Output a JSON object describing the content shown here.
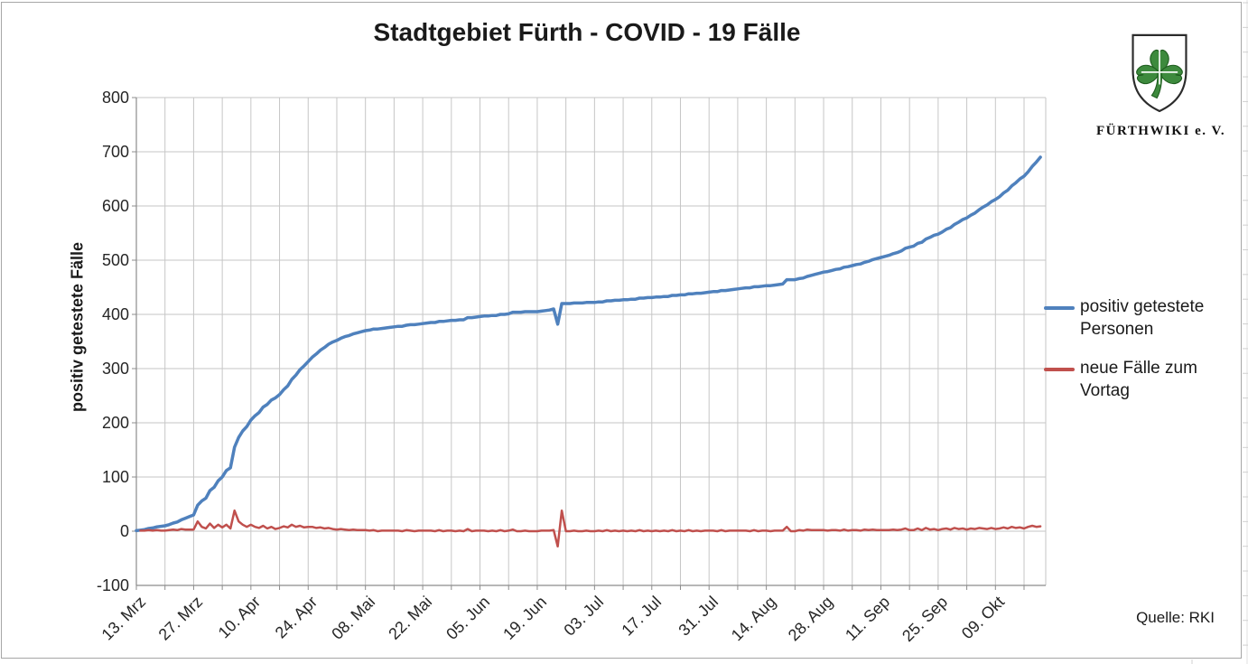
{
  "title": "Stadtgebiet Fürth - COVID - 19 Fälle",
  "logo": {
    "caption": "FÜRTHWIKI e. V.",
    "clover_color": "#3d8a3d",
    "shield_outline": "#2b2b2b"
  },
  "source_note": "Quelle: RKI",
  "legend": [
    {
      "label": "positiv getestete Personen",
      "color": "#4F81BD"
    },
    {
      "label": "neue Fälle zum Vortag",
      "color": "#C0504D"
    }
  ],
  "colors": {
    "gridline": "#c6c6c6",
    "axis": "#8c8c8c",
    "cell_line": "#d0d0d0",
    "text": "#262626"
  },
  "chart_data": {
    "type": "line",
    "title": "Stadtgebiet Fürth - COVID - 19 Fälle",
    "xlabel": "",
    "ylabel": "positiv getestete Fälle",
    "ylim": [
      -100,
      800
    ],
    "y_ticks": [
      800,
      700,
      600,
      500,
      400,
      300,
      200,
      100,
      0,
      -100
    ],
    "grid": true,
    "legend_position": "right",
    "x_tick_labels": [
      "13. Mrz",
      "27. Mrz",
      "10. Apr",
      "24. Apr",
      "08. Mai",
      "22. Mai",
      "05. Jun",
      "19. Jun",
      "03. Jul",
      "17. Jul",
      "31. Jul",
      "14. Aug",
      "28. Aug",
      "11. Sep",
      "25. Sep",
      "09. Okt"
    ],
    "x_tick_interval_days": 14,
    "gridline_interval_days": 7,
    "x_resolution": "daily, starting 13. Mrz",
    "series": [
      {
        "name": "positiv getestete Personen",
        "color": "#4F81BD",
        "width": 3.5,
        "values": [
          1,
          2,
          3,
          5,
          6,
          8,
          9,
          10,
          12,
          15,
          17,
          21,
          24,
          27,
          30,
          48,
          56,
          61,
          75,
          81,
          93,
          100,
          112,
          117,
          155,
          173,
          185,
          193,
          205,
          213,
          219,
          229,
          234,
          242,
          246,
          252,
          261,
          268,
          280,
          288,
          298,
          305,
          313,
          321,
          327,
          334,
          339,
          345,
          349,
          352,
          356,
          359,
          361,
          364,
          366,
          368,
          370,
          371,
          373,
          373,
          374,
          375,
          376,
          377,
          378,
          378,
          380,
          381,
          381,
          382,
          383,
          384,
          385,
          385,
          387,
          387,
          388,
          389,
          389,
          390,
          390,
          394,
          394,
          395,
          396,
          397,
          397,
          398,
          398,
          400,
          400,
          401,
          404,
          404,
          404,
          405,
          405,
          405,
          405,
          406,
          407,
          408,
          410,
          382,
          420,
          420,
          420,
          421,
          421,
          421,
          422,
          422,
          422,
          423,
          423,
          425,
          425,
          426,
          426,
          427,
          427,
          428,
          428,
          430,
          430,
          431,
          431,
          432,
          432,
          433,
          433,
          435,
          435,
          436,
          436,
          438,
          438,
          439,
          439,
          440,
          441,
          442,
          442,
          444,
          444,
          445,
          446,
          447,
          448,
          449,
          449,
          451,
          451,
          452,
          453,
          453,
          454,
          455,
          456,
          464,
          464,
          464,
          466,
          467,
          470,
          472,
          474,
          476,
          478,
          479,
          481,
          483,
          484,
          487,
          488,
          490,
          492,
          493,
          496,
          498,
          501,
          503,
          505,
          507,
          509,
          512,
          514,
          517,
          522,
          524,
          526,
          531,
          533,
          539,
          542,
          546,
          548,
          552,
          557,
          560,
          566,
          570,
          575,
          578,
          583,
          587,
          593,
          598,
          602,
          608,
          612,
          617,
          624,
          629,
          637,
          643,
          650,
          655,
          663,
          673,
          681,
          690
        ]
      },
      {
        "name": "neue Fälle zum Vortag",
        "color": "#C0504D",
        "width": 2.5,
        "values": [
          null,
          1,
          1,
          2,
          1,
          2,
          1,
          1,
          2,
          3,
          2,
          4,
          3,
          3,
          3,
          18,
          8,
          5,
          14,
          6,
          12,
          7,
          12,
          5,
          38,
          18,
          12,
          8,
          12,
          8,
          6,
          10,
          5,
          8,
          4,
          6,
          9,
          7,
          12,
          8,
          10,
          7,
          8,
          8,
          6,
          7,
          5,
          6,
          4,
          3,
          4,
          3,
          2,
          3,
          2,
          2,
          2,
          1,
          2,
          0,
          1,
          1,
          1,
          1,
          1,
          0,
          2,
          1,
          0,
          1,
          1,
          1,
          1,
          0,
          2,
          0,
          1,
          1,
          0,
          1,
          0,
          4,
          0,
          1,
          1,
          1,
          0,
          1,
          0,
          2,
          0,
          1,
          3,
          0,
          0,
          1,
          0,
          0,
          0,
          1,
          1,
          1,
          2,
          -28,
          38,
          0,
          0,
          1,
          0,
          0,
          1,
          0,
          0,
          1,
          0,
          2,
          0,
          1,
          0,
          1,
          0,
          1,
          0,
          2,
          0,
          1,
          0,
          1,
          0,
          1,
          0,
          2,
          0,
          1,
          0,
          2,
          0,
          1,
          0,
          1,
          1,
          1,
          0,
          2,
          0,
          1,
          1,
          1,
          1,
          1,
          0,
          2,
          0,
          1,
          1,
          0,
          1,
          1,
          1,
          8,
          0,
          0,
          2,
          1,
          3,
          2,
          2,
          2,
          2,
          1,
          2,
          2,
          1,
          3,
          1,
          2,
          2,
          1,
          3,
          2,
          3,
          2,
          2,
          2,
          2,
          3,
          2,
          3,
          5,
          2,
          2,
          5,
          2,
          6,
          3,
          4,
          2,
          4,
          5,
          3,
          6,
          4,
          5,
          3,
          5,
          4,
          6,
          5,
          4,
          6,
          4,
          5,
          7,
          5,
          8,
          6,
          7,
          5,
          8,
          10,
          8,
          9
        ]
      }
    ]
  }
}
